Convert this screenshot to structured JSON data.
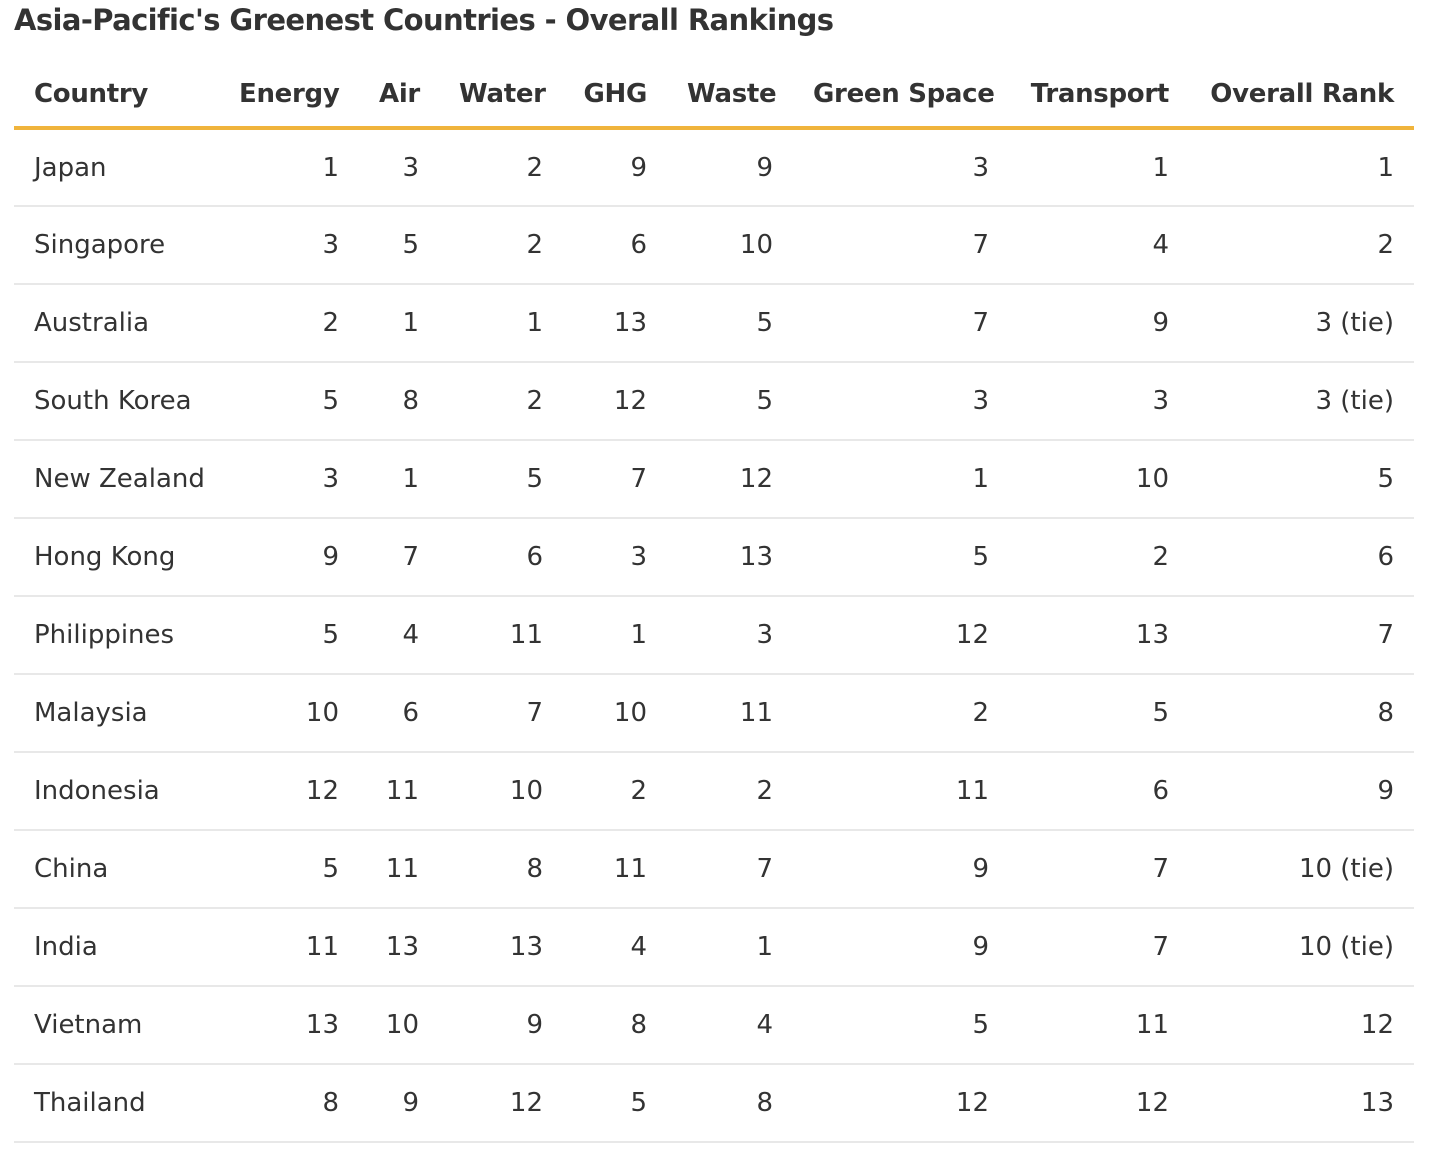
{
  "title": "Asia-Pacific's Greenest Countries - Overall Rankings",
  "columns": [
    "Country",
    "Energy",
    "Air",
    "Water",
    "GHG",
    "Waste",
    "Green Space",
    "Transport",
    "Overall Rank"
  ],
  "rows": [
    [
      "Japan",
      "1",
      "3",
      "2",
      "9",
      "9",
      "3",
      "1",
      "1"
    ],
    [
      "Singapore",
      "3",
      "5",
      "2",
      "6",
      "10",
      "7",
      "4",
      "2"
    ],
    [
      "Australia",
      "2",
      "1",
      "1",
      "13",
      "5",
      "7",
      "9",
      "3 (tie)"
    ],
    [
      "South Korea",
      "5",
      "8",
      "2",
      "12",
      "5",
      "3",
      "3",
      "3 (tie)"
    ],
    [
      "New Zealand",
      "3",
      "1",
      "5",
      "7",
      "12",
      "1",
      "10",
      "5"
    ],
    [
      "Hong Kong",
      "9",
      "7",
      "6",
      "3",
      "13",
      "5",
      "2",
      "6"
    ],
    [
      "Philippines",
      "5",
      "4",
      "11",
      "1",
      "3",
      "12",
      "13",
      "7"
    ],
    [
      "Malaysia",
      "10",
      "6",
      "7",
      "10",
      "11",
      "2",
      "5",
      "8"
    ],
    [
      "Indonesia",
      "12",
      "11",
      "10",
      "2",
      "2",
      "11",
      "6",
      "9"
    ],
    [
      "China",
      "5",
      "11",
      "8",
      "11",
      "7",
      "9",
      "7",
      "10 (tie)"
    ],
    [
      "India",
      "11",
      "13",
      "13",
      "4",
      "1",
      "9",
      "7",
      "10 (tie)"
    ],
    [
      "Vietnam",
      "13",
      "10",
      "9",
      "8",
      "4",
      "5",
      "11",
      "12"
    ],
    [
      "Thailand",
      "8",
      "9",
      "12",
      "5",
      "8",
      "12",
      "12",
      "13"
    ]
  ],
  "colors": {
    "header_rule": "#f0b43c",
    "row_rule": "#e8e8e8",
    "text": "#333333"
  }
}
